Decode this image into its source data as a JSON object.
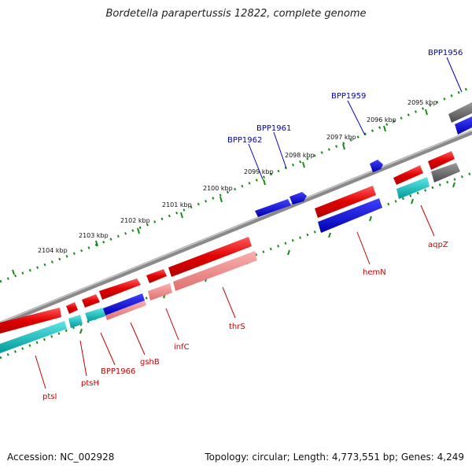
{
  "title": "Bordetella parapertussis 12822, complete genome",
  "accession": "Accession: NC_002928",
  "summary": "Topology: circular; Length: 4,773,551 bp; Genes: 4,249",
  "kbp_ticks": [
    "2104 kbp",
    "2103 kbp",
    "2102 kbp",
    "2101 kbp",
    "2100 kbp",
    "2099 kbp",
    "2098 kbp",
    "2097 kbp",
    "2096 kbp",
    "2095 kbp"
  ],
  "genes_top": [
    "BPP1962",
    "BPP1961",
    "BPP1959",
    "BPP1956"
  ],
  "genes_bottom": [
    "ptsI",
    "ptsH",
    "BPP1966",
    "gshB",
    "infC",
    "thrS",
    "hemN",
    "aqpZ"
  ],
  "colors": {
    "forward_cds": "#0000e0",
    "reverse_cds": "#e60000",
    "reverse_light": "#f08a8a",
    "gene_teal": "#00c0c0",
    "gray_feature": "#6e6e6e",
    "backbone": "#8a8a8a",
    "tick_green": "#1a8a1a"
  }
}
